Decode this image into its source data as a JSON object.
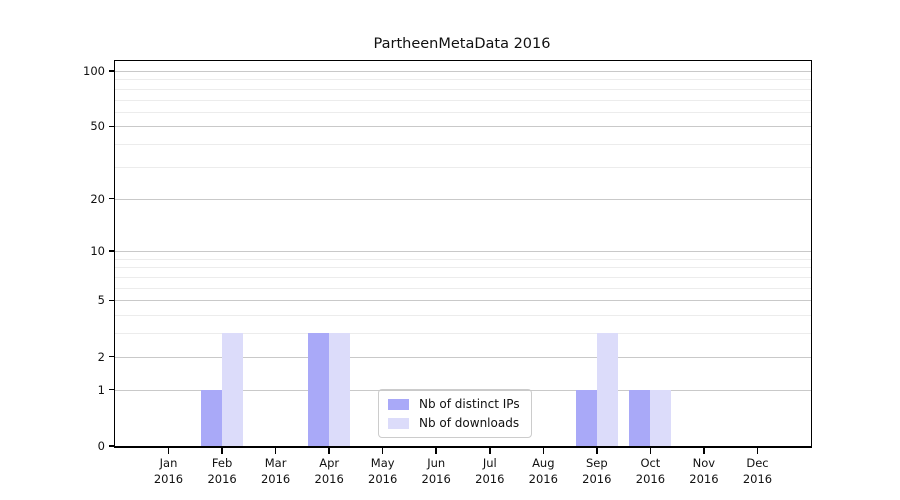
{
  "title": "PartheenMetaData 2016",
  "chart_data": {
    "type": "bar",
    "title": "PartheenMetaData 2016",
    "categories": [
      "Jan",
      "Feb",
      "Mar",
      "Apr",
      "May",
      "Jun",
      "Jul",
      "Aug",
      "Sep",
      "Oct",
      "Nov",
      "Dec"
    ],
    "year_label": "2016",
    "series": [
      {
        "name": "Nb of distinct IPs",
        "color": "#a9a9f8",
        "values": [
          0,
          1,
          0,
          3,
          0,
          0,
          0,
          0,
          1,
          1,
          0,
          0
        ]
      },
      {
        "name": "Nb of downloads",
        "color": "#dcdcfa",
        "values": [
          0,
          3,
          0,
          3,
          0,
          0,
          0,
          0,
          3,
          1,
          0,
          0
        ]
      }
    ],
    "yscale": "log1p",
    "ylim": [
      0,
      113
    ],
    "xlim": [
      0,
      13
    ],
    "y_major_ticks": [
      0,
      1,
      2,
      5,
      10,
      20,
      50,
      100
    ],
    "y_minor_gridlines": [
      3,
      4,
      6,
      7,
      8,
      9,
      30,
      40,
      60,
      70,
      80,
      90
    ],
    "grid": "horizontal",
    "legend_position": "lower center",
    "colors": {
      "major_grid": "#c9c9c9",
      "minor_grid": "#ececec",
      "spine": "#000000",
      "background": "#ffffff",
      "text": "#111111"
    }
  }
}
